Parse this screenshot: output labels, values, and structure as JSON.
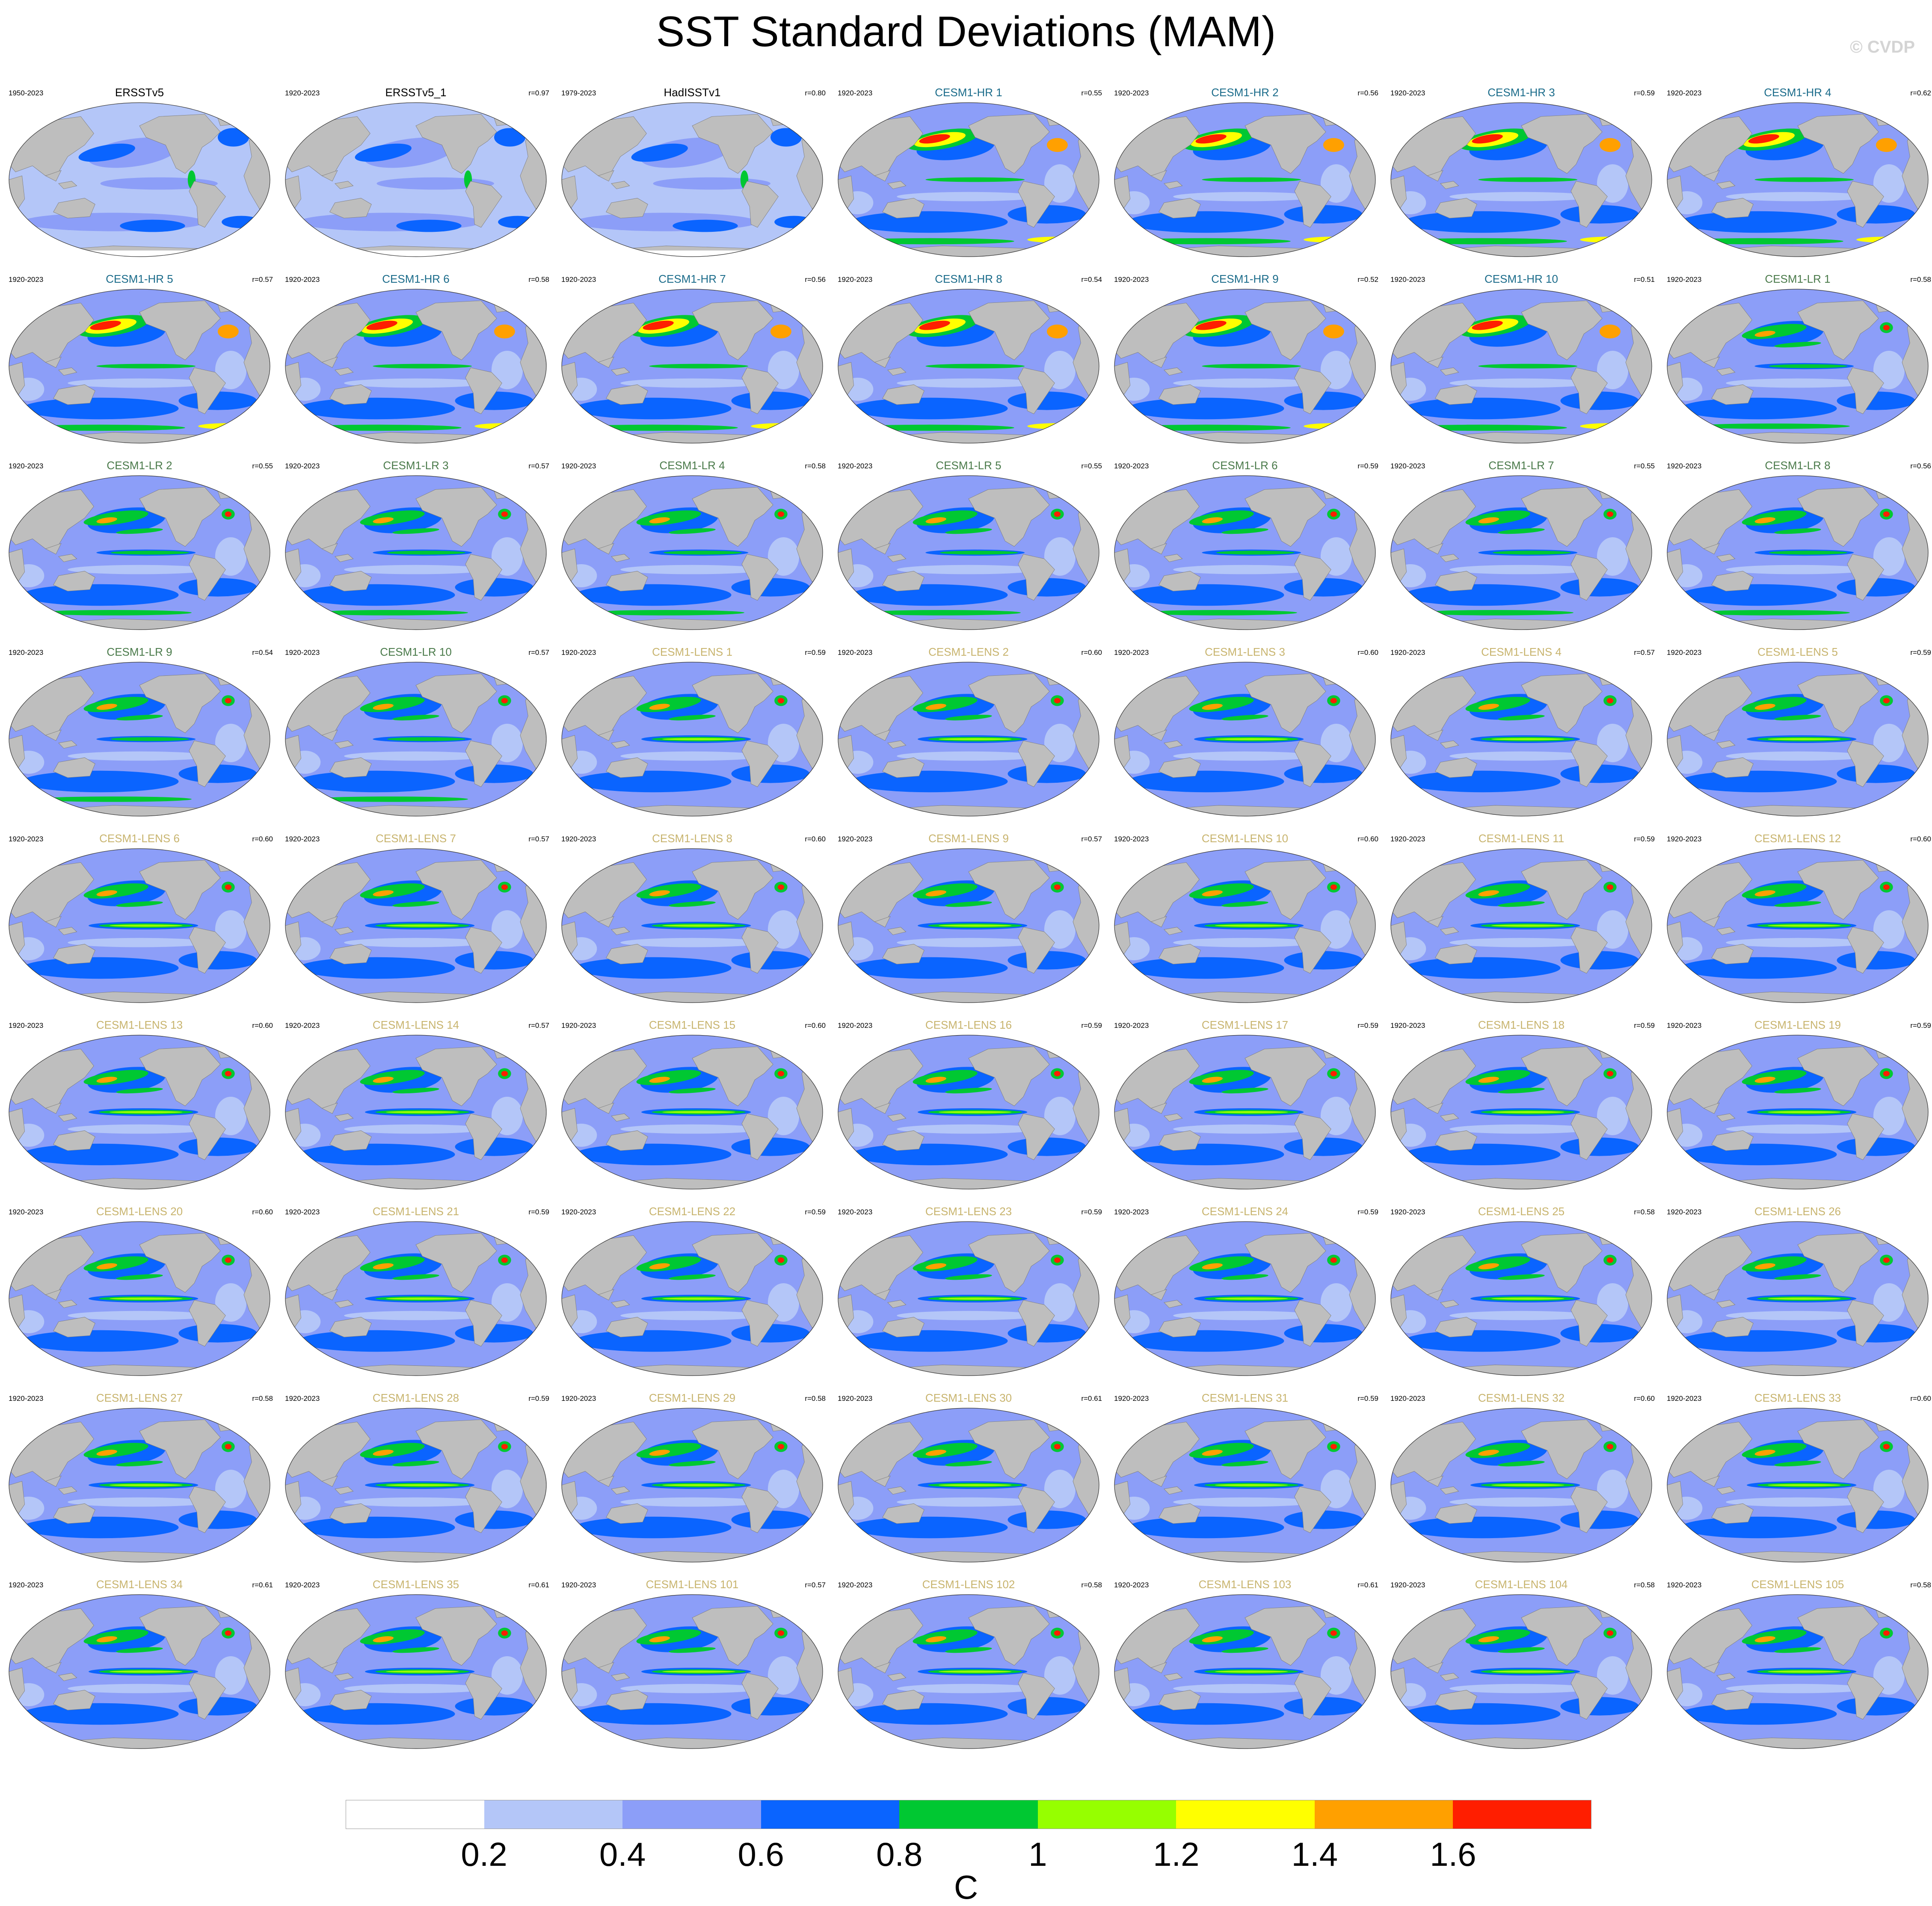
{
  "title": "SST Standard Deviations (MAM)",
  "watermark": "© CVDP",
  "colors": {
    "land": "#bebebe",
    "title_obs": "#000000",
    "title_hr": "#1a6b8a",
    "title_lr": "#4a7a4a",
    "title_lens": "#c8b46e"
  },
  "colorbar": {
    "unit": "C",
    "ticks": [
      "0.2",
      "0.4",
      "0.6",
      "0.8",
      "1",
      "1.2",
      "1.4",
      "1.6"
    ],
    "colors": [
      "#ffffff",
      "#b4c6f8",
      "#8c9ef8",
      "#0a64ff",
      "#00c832",
      "#96ff00",
      "#ffff00",
      "#ffa000",
      "#ff1e00"
    ]
  },
  "panels": [
    {
      "title": "ERSSTv5",
      "years": "1950-2023",
      "r": "",
      "group": "obs"
    },
    {
      "title": "ERSSTv5_1",
      "years": "1920-2023",
      "r": "r=0.97",
      "group": "obs"
    },
    {
      "title": "HadISSTv1",
      "years": "1979-2023",
      "r": "r=0.80",
      "group": "obs"
    },
    {
      "title": "CESM1-HR 1",
      "years": "1920-2023",
      "r": "r=0.55",
      "group": "hr"
    },
    {
      "title": "CESM1-HR 2",
      "years": "1920-2023",
      "r": "r=0.56",
      "group": "hr"
    },
    {
      "title": "CESM1-HR 3",
      "years": "1920-2023",
      "r": "r=0.59",
      "group": "hr"
    },
    {
      "title": "CESM1-HR 4",
      "years": "1920-2023",
      "r": "r=0.62",
      "group": "hr"
    },
    {
      "title": "CESM1-HR 5",
      "years": "1920-2023",
      "r": "r=0.57",
      "group": "hr"
    },
    {
      "title": "CESM1-HR 6",
      "years": "1920-2023",
      "r": "r=0.58",
      "group": "hr"
    },
    {
      "title": "CESM1-HR 7",
      "years": "1920-2023",
      "r": "r=0.56",
      "group": "hr"
    },
    {
      "title": "CESM1-HR 8",
      "years": "1920-2023",
      "r": "r=0.54",
      "group": "hr"
    },
    {
      "title": "CESM1-HR 9",
      "years": "1920-2023",
      "r": "r=0.52",
      "group": "hr"
    },
    {
      "title": "CESM1-HR 10",
      "years": "1920-2023",
      "r": "r=0.51",
      "group": "hr"
    },
    {
      "title": "CESM1-LR 1",
      "years": "1920-2023",
      "r": "r=0.58",
      "group": "lr"
    },
    {
      "title": "CESM1-LR 2",
      "years": "1920-2023",
      "r": "r=0.55",
      "group": "lr"
    },
    {
      "title": "CESM1-LR 3",
      "years": "1920-2023",
      "r": "r=0.57",
      "group": "lr"
    },
    {
      "title": "CESM1-LR 4",
      "years": "1920-2023",
      "r": "r=0.58",
      "group": "lr"
    },
    {
      "title": "CESM1-LR 5",
      "years": "1920-2023",
      "r": "r=0.55",
      "group": "lr"
    },
    {
      "title": "CESM1-LR 6",
      "years": "1920-2023",
      "r": "r=0.59",
      "group": "lr"
    },
    {
      "title": "CESM1-LR 7",
      "years": "1920-2023",
      "r": "r=0.55",
      "group": "lr"
    },
    {
      "title": "CESM1-LR 8",
      "years": "1920-2023",
      "r": "r=0.56",
      "group": "lr"
    },
    {
      "title": "CESM1-LR 9",
      "years": "1920-2023",
      "r": "r=0.54",
      "group": "lr"
    },
    {
      "title": "CESM1-LR 10",
      "years": "1920-2023",
      "r": "r=0.57",
      "group": "lr"
    },
    {
      "title": "CESM1-LENS 1",
      "years": "1920-2023",
      "r": "r=0.59",
      "group": "lens"
    },
    {
      "title": "CESM1-LENS 2",
      "years": "1920-2023",
      "r": "r=0.60",
      "group": "lens"
    },
    {
      "title": "CESM1-LENS 3",
      "years": "1920-2023",
      "r": "r=0.60",
      "group": "lens"
    },
    {
      "title": "CESM1-LENS 4",
      "years": "1920-2023",
      "r": "r=0.57",
      "group": "lens"
    },
    {
      "title": "CESM1-LENS 5",
      "years": "1920-2023",
      "r": "r=0.59",
      "group": "lens"
    },
    {
      "title": "CESM1-LENS 6",
      "years": "1920-2023",
      "r": "r=0.60",
      "group": "lens"
    },
    {
      "title": "CESM1-LENS 7",
      "years": "1920-2023",
      "r": "r=0.57",
      "group": "lens"
    },
    {
      "title": "CESM1-LENS 8",
      "years": "1920-2023",
      "r": "r=0.60",
      "group": "lens"
    },
    {
      "title": "CESM1-LENS 9",
      "years": "1920-2023",
      "r": "r=0.57",
      "group": "lens"
    },
    {
      "title": "CESM1-LENS 10",
      "years": "1920-2023",
      "r": "r=0.60",
      "group": "lens"
    },
    {
      "title": "CESM1-LENS 11",
      "years": "1920-2023",
      "r": "r=0.59",
      "group": "lens"
    },
    {
      "title": "CESM1-LENS 12",
      "years": "1920-2023",
      "r": "r=0.60",
      "group": "lens"
    },
    {
      "title": "CESM1-LENS 13",
      "years": "1920-2023",
      "r": "r=0.60",
      "group": "lens"
    },
    {
      "title": "CESM1-LENS 14",
      "years": "1920-2023",
      "r": "r=0.57",
      "group": "lens"
    },
    {
      "title": "CESM1-LENS 15",
      "years": "1920-2023",
      "r": "r=0.60",
      "group": "lens"
    },
    {
      "title": "CESM1-LENS 16",
      "years": "1920-2023",
      "r": "r=0.59",
      "group": "lens"
    },
    {
      "title": "CESM1-LENS 17",
      "years": "1920-2023",
      "r": "r=0.59",
      "group": "lens"
    },
    {
      "title": "CESM1-LENS 18",
      "years": "1920-2023",
      "r": "r=0.59",
      "group": "lens"
    },
    {
      "title": "CESM1-LENS 19",
      "years": "1920-2023",
      "r": "r=0.59",
      "group": "lens"
    },
    {
      "title": "CESM1-LENS 20",
      "years": "1920-2023",
      "r": "r=0.60",
      "group": "lens"
    },
    {
      "title": "CESM1-LENS 21",
      "years": "1920-2023",
      "r": "r=0.59",
      "group": "lens"
    },
    {
      "title": "CESM1-LENS 22",
      "years": "1920-2023",
      "r": "r=0.59",
      "group": "lens"
    },
    {
      "title": "CESM1-LENS 23",
      "years": "1920-2023",
      "r": "r=0.59",
      "group": "lens"
    },
    {
      "title": "CESM1-LENS 24",
      "years": "1920-2023",
      "r": "r=0.59",
      "group": "lens"
    },
    {
      "title": "CESM1-LENS 25",
      "years": "1920-2023",
      "r": "r=0.58",
      "group": "lens"
    },
    {
      "title": "CESM1-LENS 26",
      "years": "1920-2023",
      "r": "",
      "group": "lens"
    },
    {
      "title": "CESM1-LENS 27",
      "years": "1920-2023",
      "r": "r=0.58",
      "group": "lens"
    },
    {
      "title": "CESM1-LENS 28",
      "years": "1920-2023",
      "r": "r=0.59",
      "group": "lens"
    },
    {
      "title": "CESM1-LENS 29",
      "years": "1920-2023",
      "r": "r=0.58",
      "group": "lens"
    },
    {
      "title": "CESM1-LENS 30",
      "years": "1920-2023",
      "r": "r=0.61",
      "group": "lens"
    },
    {
      "title": "CESM1-LENS 31",
      "years": "1920-2023",
      "r": "r=0.59",
      "group": "lens"
    },
    {
      "title": "CESM1-LENS 32",
      "years": "1920-2023",
      "r": "r=0.60",
      "group": "lens"
    },
    {
      "title": "CESM1-LENS 33",
      "years": "1920-2023",
      "r": "r=0.60",
      "group": "lens"
    },
    {
      "title": "CESM1-LENS 34",
      "years": "1920-2023",
      "r": "r=0.61",
      "group": "lens"
    },
    {
      "title": "CESM1-LENS 35",
      "years": "1920-2023",
      "r": "r=0.61",
      "group": "lens"
    },
    {
      "title": "CESM1-LENS 101",
      "years": "1920-2023",
      "r": "r=0.57",
      "group": "lens"
    },
    {
      "title": "CESM1-LENS 102",
      "years": "1920-2023",
      "r": "r=0.58",
      "group": "lens"
    },
    {
      "title": "CESM1-LENS 103",
      "years": "1920-2023",
      "r": "r=0.61",
      "group": "lens"
    },
    {
      "title": "CESM1-LENS 104",
      "years": "1920-2023",
      "r": "r=0.58",
      "group": "lens"
    },
    {
      "title": "CESM1-LENS 105",
      "years": "1920-2023",
      "r": "r=0.58",
      "group": "lens"
    }
  ]
}
